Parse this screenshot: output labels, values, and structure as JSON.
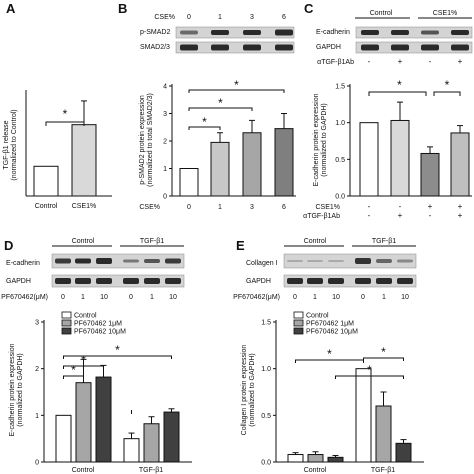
{
  "panels": {
    "A": {
      "letter": "A"
    },
    "B": {
      "letter": "B",
      "cse_label": "CSE%",
      "cse_levels": [
        "0",
        "1",
        "3",
        "6"
      ],
      "blot_rows": [
        "p-SMAD2",
        "SMAD2/3"
      ]
    },
    "C": {
      "letter": "C",
      "groups": [
        "Control",
        "CSE1%"
      ],
      "blot_rows": [
        "E-cadherin",
        "GAPDH"
      ],
      "ab_label": "αTGF-β1Ab",
      "ab_signs": [
        "-",
        "+",
        "-",
        "+"
      ]
    },
    "D": {
      "letter": "D",
      "groups": [
        "Control",
        "TGF-β1"
      ],
      "blot_rows": [
        "E-cadherin",
        "GAPDH"
      ],
      "dose_label": "PF670462(μM)",
      "doses": [
        "0",
        "1",
        "10",
        "0",
        "1",
        "10"
      ]
    },
    "E": {
      "letter": "E",
      "groups": [
        "Control",
        "TGF-β1"
      ],
      "blot_rows": [
        "Collagen I",
        "GAPDH"
      ],
      "dose_label": "PF670462(μM)",
      "doses": [
        "0",
        "1",
        "10",
        "0",
        "1",
        "10"
      ]
    }
  },
  "chart_data": [
    {
      "panel": "A",
      "type": "bar",
      "categories": [
        "Control",
        "CSE1%"
      ],
      "values": [
        1.0,
        2.4
      ],
      "errors": [
        0.0,
        0.8
      ],
      "ylabel": "TGF-β1 release",
      "ylabel2": "(normalized to Control)",
      "colors": [
        "#ffffff",
        "#d9d9d9"
      ],
      "significance": [
        "*"
      ]
    },
    {
      "panel": "B",
      "type": "bar",
      "categories": [
        "0",
        "1",
        "3",
        "6"
      ],
      "xlabel": "CSE%",
      "values": [
        1.0,
        1.95,
        2.3,
        2.45
      ],
      "errors": [
        0.0,
        0.35,
        0.45,
        0.55
      ],
      "ylim": [
        0,
        4
      ],
      "yticks": [
        "0",
        "1",
        "2",
        "3",
        "4"
      ],
      "ylabel": "p-SMAD2 protein expression",
      "ylabel2": "(normalized to total SMAD2/3)",
      "colors": [
        "#ffffff",
        "#c8c8c8",
        "#a6a6a6",
        "#7f7f7f"
      ],
      "significance": [
        "*",
        "*",
        "*"
      ]
    },
    {
      "panel": "C",
      "type": "bar",
      "categories": [
        "1",
        "2",
        "3",
        "4"
      ],
      "row_labels": [
        "CSE1%",
        "αTGF-β1Ab"
      ],
      "row_signs": [
        [
          "-",
          "-",
          "+",
          "+"
        ],
        [
          "-",
          "+",
          "-",
          "+"
        ]
      ],
      "values": [
        1.0,
        1.03,
        0.58,
        0.86
      ],
      "errors": [
        0.0,
        0.25,
        0.09,
        0.1
      ],
      "ylim": [
        0,
        1.5
      ],
      "yticks": [
        "0.0",
        "0.5",
        "1.0",
        "1.5"
      ],
      "ylabel": "E-cadherin protein expression",
      "ylabel2": "(normalized to GAPDH)",
      "colors": [
        "#ffffff",
        "#d9d9d9",
        "#8c8c8c",
        "#bfbfbf"
      ],
      "significance": [
        "*",
        "*"
      ]
    },
    {
      "panel": "D",
      "type": "bar",
      "categories": [
        "Control",
        "TGF-β1"
      ],
      "series": [
        {
          "name": "Control",
          "values": [
            1.0,
            0.5
          ],
          "errors": [
            0.0,
            0.12
          ],
          "color": "#ffffff"
        },
        {
          "name": "PF670462 1μM",
          "values": [
            1.7,
            0.82
          ],
          "errors": [
            0.5,
            0.15
          ],
          "color": "#a6a6a6"
        },
        {
          "name": "PF670462 10μM",
          "values": [
            1.82,
            1.07
          ],
          "errors": [
            0.25,
            0.07
          ],
          "color": "#404040"
        }
      ],
      "ylim": [
        0,
        3
      ],
      "yticks": [
        "0",
        "1",
        "2",
        "3"
      ],
      "ylabel": "E-cadherin protein expression",
      "ylabel2": "(normalized to GAPDH)",
      "significance": [
        "*",
        "*",
        "*"
      ]
    },
    {
      "panel": "E",
      "type": "bar",
      "categories": [
        "Control",
        "TGF-β1"
      ],
      "series": [
        {
          "name": "Control",
          "values": [
            0.08,
            1.0
          ],
          "errors": [
            0.02,
            0.0
          ],
          "color": "#ffffff"
        },
        {
          "name": "PF670462 1μM",
          "values": [
            0.08,
            0.6
          ],
          "errors": [
            0.03,
            0.15
          ],
          "color": "#a6a6a6"
        },
        {
          "name": "PF670462 10μM",
          "values": [
            0.05,
            0.2
          ],
          "errors": [
            0.02,
            0.04
          ],
          "color": "#404040"
        }
      ],
      "ylim": [
        0,
        1.5
      ],
      "yticks": [
        "0.0",
        "0.5",
        "1.0",
        "1.5"
      ],
      "ylabel": "Collagen I protein expression",
      "ylabel2": "(normalized to GAPDH)",
      "significance": [
        "*",
        "*",
        "*"
      ]
    }
  ]
}
